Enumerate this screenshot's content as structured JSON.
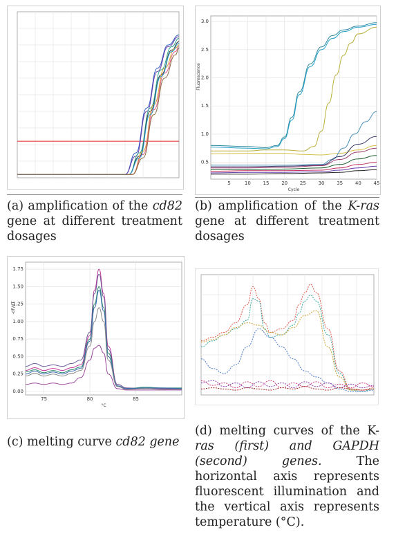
{
  "figures": [
    {
      "caption_parts": [
        {
          "text": "(a) amplification of the ",
          "italic": false
        },
        {
          "text": "cd82",
          "italic": true
        },
        {
          "text": " gene at different treatment dosages",
          "italic": false
        }
      ]
    },
    {
      "caption_parts": [
        {
          "text": "(b) amplification of the ",
          "italic": false
        },
        {
          "text": "K-ras",
          "italic": true
        },
        {
          "text": " gene at different treatment dosages",
          "italic": false
        }
      ]
    },
    {
      "caption_parts": [
        {
          "text": "(c) melting curve ",
          "italic": false
        },
        {
          "text": "cd82 gene",
          "italic": true
        }
      ]
    },
    {
      "caption_parts": [
        {
          "text": "(d) melting curves of the K-",
          "italic": false
        },
        {
          "text": "ras (first) and GAPDH (second) genes.",
          "italic": true
        },
        {
          "text": " The horizontal axis represents fluorescent illumination and the vertical axis represents temperature (°C).",
          "italic": false
        }
      ]
    }
  ],
  "chart_data": [
    {
      "id": "a",
      "type": "line",
      "xlabel": "",
      "ylabel": "",
      "xlim": [
        0,
        45
      ],
      "ylim": [
        0,
        1
      ],
      "grid": true,
      "threshold": {
        "value": 0.22,
        "color": "#e83c3c"
      },
      "series": [
        {
          "color": "#2b55c4",
          "x": [
            0,
            30,
            33,
            36,
            39,
            42,
            45
          ],
          "values": [
            0.02,
            0.02,
            0.15,
            0.42,
            0.66,
            0.8,
            0.86
          ]
        },
        {
          "color": "#6a3fa8",
          "x": [
            0,
            30,
            33,
            36,
            39,
            42,
            45
          ],
          "values": [
            0.02,
            0.02,
            0.13,
            0.4,
            0.64,
            0.79,
            0.85
          ]
        },
        {
          "color": "#2aa88f",
          "x": [
            0,
            31,
            34,
            37,
            40,
            43,
            45
          ],
          "values": [
            0.02,
            0.02,
            0.15,
            0.42,
            0.65,
            0.79,
            0.84
          ]
        },
        {
          "color": "#333333",
          "x": [
            0,
            31,
            34,
            37,
            40,
            43,
            45
          ],
          "values": [
            0.02,
            0.02,
            0.13,
            0.4,
            0.62,
            0.77,
            0.82
          ]
        },
        {
          "color": "#d4a52a",
          "x": [
            0,
            32,
            35,
            38,
            41,
            44,
            45
          ],
          "values": [
            0.02,
            0.02,
            0.16,
            0.44,
            0.66,
            0.78,
            0.8
          ]
        },
        {
          "color": "#e25a8a",
          "x": [
            0,
            32,
            35,
            38,
            41,
            44,
            45
          ],
          "values": [
            0.02,
            0.02,
            0.14,
            0.41,
            0.63,
            0.76,
            0.79
          ]
        },
        {
          "color": "#2e9bd6",
          "x": [
            0,
            31,
            34,
            37,
            40,
            43,
            45
          ],
          "values": [
            0.02,
            0.02,
            0.12,
            0.38,
            0.61,
            0.76,
            0.81
          ]
        },
        {
          "color": "#8a6b3f",
          "x": [
            0,
            32,
            35,
            38,
            41,
            44,
            45
          ],
          "values": [
            0.02,
            0.02,
            0.12,
            0.38,
            0.6,
            0.74,
            0.78
          ]
        }
      ]
    },
    {
      "id": "b",
      "type": "line",
      "xlabel": "Cycle",
      "ylabel": "Fluorescence",
      "xlim": [
        0,
        45
      ],
      "ylim": [
        0.2,
        3.1
      ],
      "x_ticks": [
        "5",
        "10",
        "15",
        "20",
        "25",
        "30",
        "35",
        "40",
        "45"
      ],
      "y_ticks": [
        "0.5",
        "1.0",
        "1.5",
        "2.0",
        "2.5",
        "3.0"
      ],
      "grid": true,
      "series": [
        {
          "color": "#2f8a9e",
          "x": [
            0,
            10,
            15,
            18,
            20,
            22,
            24,
            27,
            30,
            33,
            36,
            40,
            45
          ],
          "values": [
            0.8,
            0.78,
            0.76,
            0.8,
            0.95,
            1.3,
            1.75,
            2.25,
            2.55,
            2.75,
            2.85,
            2.92,
            2.98
          ]
        },
        {
          "color": "#26a0c8",
          "x": [
            0,
            10,
            15,
            18,
            20,
            22,
            24,
            27,
            30,
            33,
            36,
            40,
            45
          ],
          "values": [
            0.77,
            0.75,
            0.74,
            0.78,
            0.92,
            1.25,
            1.7,
            2.2,
            2.5,
            2.7,
            2.82,
            2.9,
            2.95
          ]
        },
        {
          "color": "#b8b03a",
          "x": [
            0,
            10,
            15,
            20,
            25,
            28,
            30,
            32,
            34,
            36,
            38,
            40,
            45
          ],
          "values": [
            0.7,
            0.7,
            0.72,
            0.72,
            0.7,
            0.78,
            1.05,
            1.55,
            2.05,
            2.4,
            2.62,
            2.78,
            2.9
          ]
        },
        {
          "color": "#d4c14a",
          "x": [
            0,
            10,
            20,
            25,
            30,
            35,
            40,
            45
          ],
          "values": [
            0.65,
            0.66,
            0.66,
            0.64,
            0.63,
            0.66,
            0.72,
            0.8
          ]
        },
        {
          "color": "#4a8fb8",
          "x": [
            0,
            10,
            20,
            30,
            33,
            36,
            39,
            42,
            45
          ],
          "values": [
            0.45,
            0.45,
            0.45,
            0.46,
            0.55,
            0.75,
            1.0,
            1.22,
            1.4
          ]
        },
        {
          "color": "#3a3a6a",
          "x": [
            0,
            10,
            20,
            30,
            35,
            40,
            45
          ],
          "values": [
            0.42,
            0.42,
            0.43,
            0.45,
            0.6,
            0.82,
            0.96
          ]
        },
        {
          "color": "#9a3a6a",
          "x": [
            0,
            10,
            20,
            30,
            35,
            40,
            45
          ],
          "values": [
            0.4,
            0.4,
            0.41,
            0.44,
            0.55,
            0.68,
            0.75
          ]
        },
        {
          "color": "#1f5f2f",
          "x": [
            0,
            10,
            20,
            30,
            35,
            40,
            45
          ],
          "values": [
            0.37,
            0.37,
            0.38,
            0.4,
            0.46,
            0.56,
            0.62
          ]
        },
        {
          "color": "#c03060",
          "x": [
            0,
            10,
            20,
            30,
            35,
            40,
            45
          ],
          "values": [
            0.34,
            0.35,
            0.35,
            0.36,
            0.4,
            0.46,
            0.5
          ]
        },
        {
          "color": "#6a3aa8",
          "x": [
            0,
            10,
            20,
            30,
            35,
            40,
            45
          ],
          "values": [
            0.31,
            0.32,
            0.32,
            0.33,
            0.36,
            0.4,
            0.43
          ]
        },
        {
          "color": "#202020",
          "x": [
            0,
            10,
            20,
            30,
            35,
            40,
            45
          ],
          "values": [
            0.29,
            0.29,
            0.3,
            0.31,
            0.32,
            0.35,
            0.37
          ]
        }
      ]
    },
    {
      "id": "c",
      "type": "line",
      "xlabel": "°C",
      "ylabel": "-dF/dT",
      "xlim": [
        73,
        90
      ],
      "ylim": [
        -0.05,
        1.85
      ],
      "x_ticks": [
        "75",
        "80",
        "85"
      ],
      "y_ticks": [
        "0.00",
        "0.25",
        "0.50",
        "0.75",
        "1.00",
        "1.25",
        "1.50",
        "1.75"
      ],
      "grid": true,
      "series": [
        {
          "color": "#c0389a",
          "x": [
            73,
            74,
            75,
            76,
            77,
            78,
            79,
            80,
            80.5,
            81,
            81.5,
            82,
            83,
            84,
            86,
            88,
            90
          ],
          "values": [
            0.3,
            0.34,
            0.3,
            0.33,
            0.3,
            0.34,
            0.38,
            0.8,
            1.45,
            1.75,
            1.4,
            0.65,
            0.1,
            0.05,
            0.04,
            0.04,
            0.04
          ]
        },
        {
          "color": "#6a5a9a",
          "x": [
            73,
            74,
            75,
            76,
            77,
            78,
            79,
            80,
            80.5,
            81,
            81.5,
            82,
            83,
            84,
            86,
            88,
            90
          ],
          "values": [
            0.36,
            0.4,
            0.36,
            0.38,
            0.36,
            0.4,
            0.45,
            0.85,
            1.4,
            1.68,
            1.35,
            0.6,
            0.1,
            0.05,
            0.04,
            0.04,
            0.04
          ]
        },
        {
          "color": "#2a8a6a",
          "x": [
            73,
            74,
            75,
            76,
            77,
            78,
            79,
            80,
            80.5,
            81,
            81.5,
            82,
            83,
            84,
            86,
            88,
            90
          ],
          "values": [
            0.28,
            0.31,
            0.27,
            0.3,
            0.27,
            0.31,
            0.35,
            0.75,
            1.25,
            1.5,
            1.2,
            0.55,
            0.08,
            0.04,
            0.06,
            0.05,
            0.05
          ]
        },
        {
          "color": "#3a6ab0",
          "x": [
            73,
            74,
            75,
            76,
            77,
            78,
            79,
            80,
            80.5,
            81,
            81.5,
            82,
            83,
            84,
            86,
            88,
            90
          ],
          "values": [
            0.25,
            0.29,
            0.25,
            0.28,
            0.25,
            0.29,
            0.33,
            0.72,
            1.2,
            1.45,
            1.15,
            0.5,
            0.08,
            0.04,
            0.05,
            0.05,
            0.04
          ]
        },
        {
          "color": "#8a8a8a",
          "x": [
            73,
            74,
            75,
            76,
            77,
            78,
            79,
            80,
            80.5,
            81,
            81.5,
            82,
            83,
            84,
            86,
            88,
            90
          ],
          "values": [
            0.22,
            0.26,
            0.22,
            0.25,
            0.22,
            0.26,
            0.3,
            0.65,
            1.0,
            1.2,
            1.0,
            0.45,
            0.07,
            0.03,
            0.04,
            0.03,
            0.03
          ]
        },
        {
          "color": "#9a4a9a",
          "x": [
            73,
            74,
            75,
            76,
            77,
            78,
            79,
            80,
            80.5,
            81,
            81.5,
            82,
            83,
            84,
            86,
            88,
            90
          ],
          "values": [
            0.1,
            0.12,
            0.1,
            0.12,
            0.1,
            0.12,
            0.2,
            0.45,
            0.62,
            0.66,
            0.55,
            0.25,
            0.04,
            0.02,
            0.02,
            0.02,
            0.02
          ]
        }
      ]
    },
    {
      "id": "d",
      "type": "line",
      "xlabel": "",
      "ylabel": "",
      "xlim": [
        0,
        30
      ],
      "ylim": [
        0,
        1
      ],
      "grid": true,
      "series": [
        {
          "color": "#e0584a",
          "x": [
            0,
            2,
            4,
            6,
            8,
            9,
            10,
            11,
            12,
            14,
            16,
            17,
            18,
            19,
            20,
            22,
            24,
            26,
            28,
            30
          ],
          "values": [
            0.45,
            0.48,
            0.52,
            0.6,
            0.75,
            0.9,
            0.8,
            0.6,
            0.52,
            0.55,
            0.62,
            0.75,
            0.85,
            0.92,
            0.85,
            0.55,
            0.2,
            0.05,
            0.04,
            0.06
          ]
        },
        {
          "color": "#38a8a0",
          "x": [
            0,
            2,
            4,
            6,
            8,
            9,
            10,
            11,
            12,
            14,
            16,
            17,
            18,
            19,
            20,
            22,
            24,
            26,
            28,
            30
          ],
          "values": [
            0.4,
            0.45,
            0.5,
            0.55,
            0.62,
            0.8,
            0.78,
            0.55,
            0.48,
            0.5,
            0.58,
            0.68,
            0.78,
            0.83,
            0.78,
            0.5,
            0.18,
            0.04,
            0.03,
            0.05
          ]
        },
        {
          "color": "#c8a030",
          "x": [
            0,
            2,
            4,
            6,
            8,
            10,
            12,
            14,
            16,
            18,
            20,
            22,
            24,
            26,
            28,
            30
          ],
          "values": [
            0.44,
            0.46,
            0.5,
            0.56,
            0.6,
            0.58,
            0.52,
            0.5,
            0.56,
            0.66,
            0.7,
            0.4,
            0.15,
            0.04,
            0.04,
            0.05
          ]
        },
        {
          "color": "#4a7ac8",
          "x": [
            0,
            2,
            4,
            6,
            8,
            10,
            12,
            14,
            16,
            18,
            20,
            22,
            24,
            26,
            28,
            30
          ],
          "values": [
            0.3,
            0.22,
            0.18,
            0.25,
            0.4,
            0.55,
            0.48,
            0.4,
            0.3,
            0.2,
            0.15,
            0.1,
            0.05,
            0.03,
            0.03,
            0.04
          ]
        },
        {
          "color": "#d04080",
          "x": [
            0,
            2,
            4,
            6,
            8,
            10,
            12,
            14,
            16,
            18,
            20,
            22,
            24,
            26,
            28,
            30
          ],
          "values": [
            0.12,
            0.08,
            0.1,
            0.06,
            0.11,
            0.07,
            0.12,
            0.06,
            0.1,
            0.07,
            0.11,
            0.06,
            0.09,
            0.06,
            0.1,
            0.07
          ]
        },
        {
          "color": "#8a3ab0",
          "x": [
            0,
            2,
            4,
            6,
            8,
            10,
            12,
            14,
            16,
            18,
            20,
            22,
            24,
            26,
            28,
            30
          ],
          "values": [
            0.1,
            0.12,
            0.07,
            0.1,
            0.06,
            0.11,
            0.07,
            0.1,
            0.06,
            0.11,
            0.07,
            0.1,
            0.06,
            0.09,
            0.06,
            0.08
          ]
        },
        {
          "color": "#a02020",
          "x": [
            0,
            2,
            4,
            6,
            8,
            10,
            12,
            14,
            16,
            18,
            20,
            22,
            24,
            26,
            28,
            30
          ],
          "values": [
            0.05,
            0.06,
            0.05,
            0.04,
            0.06,
            0.05,
            0.04,
            0.06,
            0.05,
            0.07,
            0.05,
            0.04,
            0.06,
            0.05,
            0.04,
            0.05
          ]
        }
      ]
    }
  ]
}
